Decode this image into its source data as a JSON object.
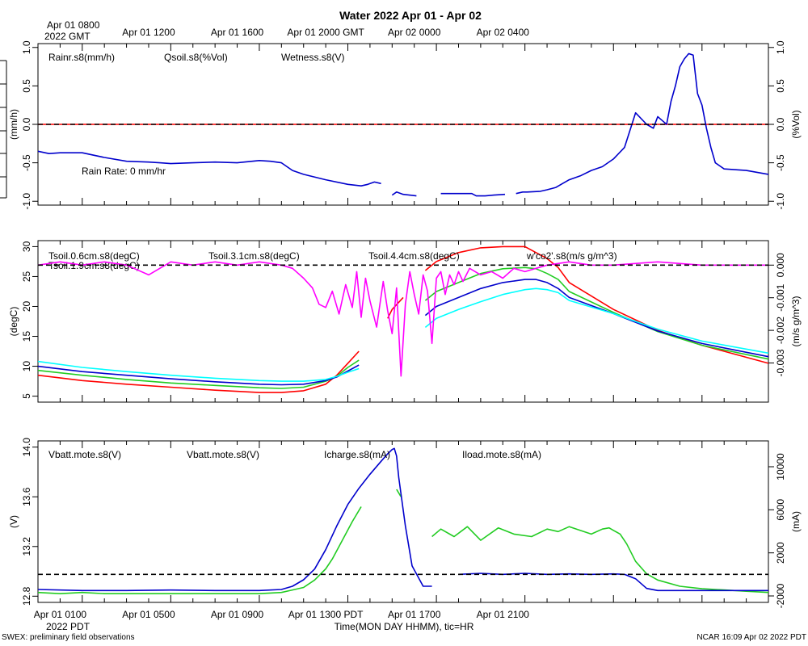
{
  "figure": {
    "title": "Water 2022 Apr 01 - Apr 02",
    "top_axis_first_label": "Apr 01 0800",
    "top_axis_first_sublabel": "2022 GMT",
    "top_axis_labels": [
      "Apr 01 1200",
      "Apr 01 1600",
      "Apr 01 2000 GMT",
      "Apr 02 0000",
      "Apr 02 0400"
    ],
    "bottom_axis_labels": [
      "Apr 01 0100",
      "Apr 01 0500",
      "Apr 01 0900",
      "Apr 01 1300 PDT",
      "Apr 01 1700",
      "Apr 01 2100"
    ],
    "bottom_axis_sublabel": "2022 PDT",
    "xlabel": "Time(MON DAY HHMM), tic=HR",
    "footer_left": "SWEX: preliminary field observations",
    "footer_right": "NCAR 16:09 Apr 02 2022 PDT",
    "colors": {
      "red": "#ff0000",
      "green": "#22cc22",
      "blue": "#0000cc",
      "cyan": "#00ffff",
      "magenta": "#ff00ff"
    }
  },
  "chart_data": [
    {
      "type": "line",
      "panel": "water",
      "x_unit": "hours since Apr 01 0000 PDT",
      "xlim": [
        0,
        33
      ],
      "ylim_left": [
        -1.05,
        1.05
      ],
      "ylim_right": [
        -1.05,
        1.05
      ],
      "ylabel_left": "(mm/h)",
      "ylabel_right": "(%Vol)",
      "yticks_left": [
        "1.0",
        "0.5",
        "0.0",
        "-0.5",
        "-1.0"
      ],
      "yticks_right": [
        "1.0",
        "0.5",
        "0.0",
        "-0.5",
        "-1.0"
      ],
      "annotation": "Rain Rate: 0 mm/hr",
      "series": [
        {
          "name": "Rainr.s8(mm/h)",
          "color": "#ff0000",
          "axis": "left",
          "x": [
            0,
            33
          ],
          "y": [
            0,
            0
          ]
        },
        {
          "name": "Qsoil.s8(%Vol)",
          "color": "#22cc22",
          "axis": "right",
          "x": [],
          "y": []
        },
        {
          "name": "Wetness.s8(V)",
          "color": "#0000cc",
          "axis": "right",
          "x": [
            0,
            0.5,
            1,
            2,
            3,
            4,
            5,
            5.5,
            6,
            7,
            8,
            9,
            10,
            10.5,
            11,
            11.5,
            12,
            13,
            14,
            14.6,
            14.9,
            15.2,
            15.5,
            15.8,
            16,
            16.2,
            16.5,
            17.1,
            17.8,
            18.2,
            19.6,
            19.8,
            20.2,
            20.6,
            21.1,
            21.4,
            21.6,
            21.9,
            22.1,
            22.7,
            23.0,
            23.4,
            23.7,
            24,
            24.5,
            25,
            25.5,
            26,
            26.5,
            27,
            27.5,
            27.8,
            28.0,
            28.2,
            28.4,
            28.6,
            28.8,
            29.0,
            29.2,
            29.4,
            29.6,
            29.8,
            30.0,
            30.2,
            30.4,
            30.6,
            31,
            32,
            33
          ],
          "y": [
            -0.35,
            -0.38,
            -0.37,
            -0.37,
            -0.43,
            -0.48,
            -0.49,
            -0.5,
            -0.51,
            -0.5,
            -0.49,
            -0.5,
            -0.47,
            -0.48,
            -0.5,
            -0.6,
            -0.65,
            -0.72,
            -0.78,
            -0.8,
            -0.78,
            -0.75,
            -0.77,
            null,
            -0.92,
            -0.88,
            -0.91,
            -0.93,
            null,
            -0.9,
            -0.9,
            -0.93,
            -0.93,
            -0.92,
            -0.91,
            null,
            -0.9,
            -0.88,
            -0.88,
            -0.87,
            -0.85,
            -0.82,
            -0.77,
            -0.72,
            -0.67,
            -0.6,
            -0.55,
            -0.45,
            -0.3,
            0.15,
            0.0,
            -0.05,
            0.1,
            0.05,
            0.0,
            0.3,
            0.5,
            0.75,
            0.85,
            0.92,
            0.9,
            0.4,
            0.25,
            -0.05,
            -0.3,
            -0.5,
            -0.58,
            -0.6,
            -0.65
          ]
        }
      ]
    },
    {
      "type": "line",
      "panel": "soil temperature",
      "x_unit": "hours since Apr 01 0000 PDT",
      "xlim": [
        0,
        33
      ],
      "ylim_left": [
        4,
        31
      ],
      "ylim_right": [
        -0.0042,
        0.00075
      ],
      "ylabel_left": "(degC)",
      "ylabel_right": "(m/s g/m^3)",
      "yticks_left": [
        "30",
        "25",
        "20",
        "15",
        "10",
        "5"
      ],
      "yticks_right": [
        "0.000",
        "-0.001",
        "-0.002",
        "-0.003"
      ],
      "series": [
        {
          "name": "Tsoil.0.6cm.s8(degC)",
          "color": "#ff0000",
          "axis": "left",
          "x": [
            0,
            2,
            4,
            6,
            8,
            10,
            11,
            12,
            13,
            13.5,
            14,
            14.5,
            15,
            15.8,
            16,
            16.5,
            17,
            17.5,
            18,
            19,
            20,
            21,
            22,
            23,
            23.5,
            24,
            26,
            28,
            30,
            33
          ],
          "y": [
            8.5,
            7.6,
            7.0,
            6.5,
            6.0,
            5.6,
            5.6,
            5.9,
            7.0,
            8.5,
            10.5,
            12.5,
            null,
            18.0,
            19.5,
            21.5,
            null,
            26.0,
            27.5,
            29.0,
            29.8,
            30.0,
            30.0,
            28.0,
            26.5,
            24.0,
            19.5,
            16.0,
            13.5,
            10.5
          ]
        },
        {
          "name": "Tsoil.1.9cm.s8(degC)",
          "color": "#22cc22",
          "axis": "left",
          "x": [
            0,
            2,
            4,
            6,
            8,
            10,
            11,
            12,
            13,
            13.5,
            14,
            14.5,
            15,
            15.8,
            16,
            16.5,
            17,
            17.5,
            18,
            19,
            20,
            21,
            22,
            22.5,
            23,
            23.5,
            24,
            26,
            28,
            30,
            33
          ],
          "y": [
            9.3,
            8.5,
            7.8,
            7.2,
            6.8,
            6.4,
            6.3,
            6.5,
            7.5,
            8.3,
            9.8,
            11.0,
            null,
            15.5,
            null,
            18.0,
            null,
            21.0,
            22.5,
            24.0,
            25.5,
            26.3,
            26.5,
            26.3,
            25.5,
            24.5,
            22.5,
            19.0,
            15.8,
            13.5,
            11.2
          ]
        },
        {
          "name": "Tsoil.3.1cm.s8(degC)",
          "color": "#0000cc",
          "axis": "left",
          "x": [
            0,
            2,
            4,
            6,
            8,
            10,
            11,
            12,
            13,
            13.5,
            14,
            14.5,
            15,
            15.8,
            16,
            16.5,
            17,
            17.5,
            18,
            19,
            20,
            21,
            22,
            22.5,
            23,
            23.5,
            24,
            26,
            28,
            30,
            33
          ],
          "y": [
            10.0,
            9.1,
            8.5,
            7.9,
            7.4,
            7.0,
            6.9,
            7.0,
            7.6,
            8.2,
            9.2,
            10.2,
            null,
            14.0,
            null,
            16.2,
            null,
            18.5,
            20.0,
            21.5,
            23.0,
            24.0,
            24.5,
            24.5,
            24.0,
            23.0,
            21.5,
            18.8,
            15.9,
            13.8,
            11.6
          ]
        },
        {
          "name": "Tsoil.4.4cm.s8(degC)",
          "color": "#00ffff",
          "axis": "left",
          "x": [
            0,
            2,
            4,
            6,
            8,
            10,
            11,
            12,
            13,
            13.5,
            14,
            14.5,
            15,
            15.8,
            16,
            16.5,
            17,
            17.5,
            18,
            19,
            20,
            21,
            22,
            22.5,
            23,
            23.5,
            24,
            26,
            28,
            30,
            33
          ],
          "y": [
            10.8,
            9.8,
            9.1,
            8.5,
            8.0,
            7.6,
            7.5,
            7.5,
            7.8,
            8.3,
            9.0,
            9.6,
            null,
            13.0,
            null,
            14.5,
            null,
            16.5,
            18.0,
            19.5,
            20.8,
            22.0,
            22.8,
            23.0,
            22.8,
            22.3,
            21.0,
            18.8,
            16.2,
            14.2,
            12.2
          ]
        },
        {
          "name": "w'co2'.s8(m/s g/m^3)",
          "color": "#ff00ff",
          "axis": "right",
          "x": [
            0,
            1,
            2,
            3,
            4,
            5,
            6,
            7,
            8,
            9,
            10,
            11,
            11.5,
            12,
            12.4,
            12.7,
            13.0,
            13.3,
            13.6,
            13.9,
            14.2,
            14.4,
            14.6,
            14.8,
            15.0,
            15.3,
            15.6,
            15.8,
            16.0,
            16.2,
            16.4,
            16.6,
            16.8,
            17.0,
            17.2,
            17.4,
            17.6,
            17.8,
            18.0,
            18.2,
            18.4,
            18.6,
            18.8,
            19.0,
            19.2,
            19.5,
            20,
            20.5,
            21,
            21.5,
            22,
            22.5,
            23,
            24,
            25,
            26,
            28,
            30,
            33
          ],
          "y": [
            0.0,
            0.0001,
            0.0,
            0.0001,
            0.0,
            -0.0003,
            0.0001,
            0.0,
            0.0001,
            0.0,
            0.0001,
            0.0,
            -0.0001,
            -0.0004,
            -0.0007,
            -0.0012,
            -0.0013,
            -0.0008,
            -0.0015,
            -0.0006,
            -0.0013,
            -0.0002,
            -0.0016,
            -0.0004,
            -0.0011,
            -0.0019,
            -0.0005,
            -0.0014,
            -0.0021,
            -0.0007,
            -0.0034,
            -0.0012,
            -0.0002,
            -0.0009,
            -0.0015,
            -0.0003,
            -0.0008,
            -0.0024,
            -0.0004,
            -0.0002,
            -0.0009,
            -0.0003,
            -0.0006,
            -0.0002,
            -0.0005,
            -0.0001,
            -0.0003,
            -0.0002,
            -0.0004,
            -0.0001,
            -0.0002,
            -0.0001,
            0.0,
            0.0001,
            0.0,
            0.0,
            0.0001,
            0.0,
            0.0
          ]
        }
      ]
    },
    {
      "type": "line",
      "panel": "power",
      "x_unit": "hours since Apr 01 0000 PDT",
      "xlim": [
        0,
        33
      ],
      "ylim_left": [
        12.75,
        14.05
      ],
      "ylim_right": [
        -2600,
        12400
      ],
      "ylabel_left": "(V)",
      "ylabel_right": "(mA)",
      "yticks_left": [
        "14.0",
        "13.6",
        "13.2",
        "12.8"
      ],
      "yticks_right": [
        "10000",
        "6000",
        "2000",
        "-2000"
      ],
      "series": [
        {
          "name": "Vbatt.mote.s8(V)",
          "color": "#ff0000",
          "axis": "left",
          "x": [],
          "y": []
        },
        {
          "name": "Vbatt.mote.s8(V)",
          "color": "#22cc22",
          "axis": "left",
          "x": [
            0,
            1,
            2,
            3,
            4,
            5,
            6,
            7,
            8,
            9,
            10,
            11,
            11.5,
            12,
            12.5,
            13,
            13.3,
            13.6,
            14.2,
            14.6,
            null,
            16.2,
            16.4,
            null,
            17.8,
            18.2,
            18.8,
            19.4,
            20,
            20.8,
            21.5,
            22.3,
            23,
            23.5,
            24,
            25,
            25.5,
            25.8,
            26.0,
            26.3,
            26.6,
            27,
            27.5,
            28,
            29,
            30,
            31,
            32,
            33
          ],
          "y": [
            12.83,
            12.82,
            12.83,
            12.82,
            12.82,
            12.82,
            12.82,
            12.82,
            12.82,
            12.82,
            12.82,
            12.83,
            12.85,
            12.87,
            12.93,
            13.02,
            13.1,
            13.2,
            13.4,
            13.52,
            null,
            13.66,
            13.6,
            null,
            13.28,
            13.34,
            13.28,
            13.36,
            13.25,
            13.35,
            13.3,
            13.28,
            13.34,
            13.32,
            13.36,
            13.3,
            13.34,
            13.35,
            13.33,
            13.3,
            13.22,
            13.08,
            12.98,
            12.93,
            12.88,
            12.86,
            12.85,
            12.84,
            12.83
          ]
        },
        {
          "name": "Icharge.s8(mA)",
          "color": "#0000cc",
          "axis": "right",
          "x": [
            0,
            2,
            4,
            6,
            8,
            10,
            11,
            11.5,
            12,
            12.5,
            13,
            13.5,
            14,
            14.5,
            15,
            15.5,
            15.8,
            16.0,
            16.1,
            16.2,
            16.3,
            16.6,
            16.9,
            17.4,
            17.8,
            18.4,
            19,
            20,
            21,
            22,
            23,
            24,
            25,
            26,
            26.5,
            27,
            27.5,
            28,
            30,
            33
          ],
          "y": [
            -1400,
            -1500,
            -1500,
            -1450,
            -1500,
            -1500,
            -1400,
            -1100,
            -500,
            500,
            2300,
            4500,
            6500,
            8000,
            9300,
            10500,
            11200,
            11600,
            11700,
            11000,
            9000,
            4500,
            800,
            -1100,
            -1100,
            null,
            0,
            100,
            0,
            100,
            0,
            50,
            0,
            50,
            0,
            -400,
            -1300,
            -1500,
            -1500,
            -1500
          ]
        },
        {
          "name": "Iload.mote.s8(mA)",
          "color": "#00ffff",
          "axis": "right",
          "x": [],
          "y": []
        }
      ]
    }
  ]
}
